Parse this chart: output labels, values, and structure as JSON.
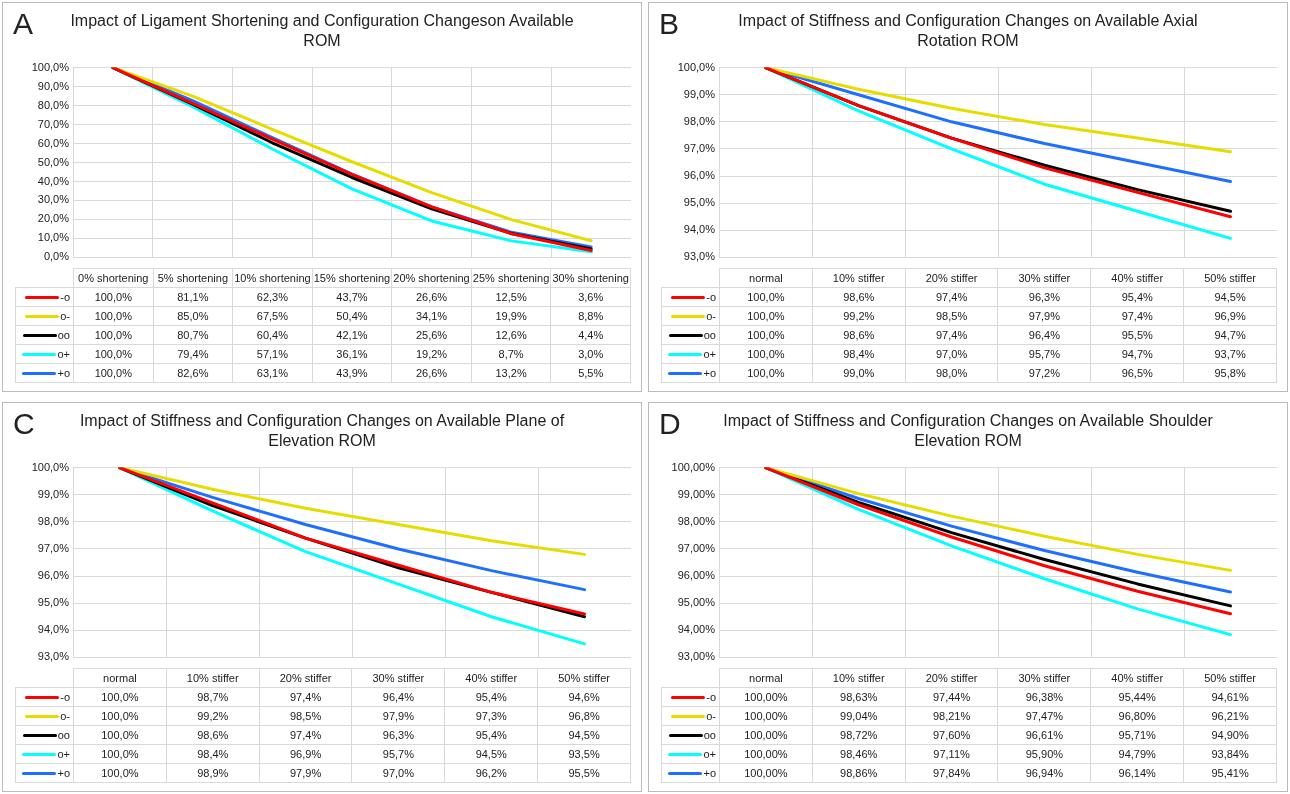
{
  "chart_data": [
    {
      "type": "line",
      "title": "Impact of Ligament Shortening and Configuration Changeson Available ROM",
      "annotations": [
        "A"
      ],
      "categories": [
        "0% shortening",
        "5% shortening",
        "10% shortening",
        "15% shortening",
        "20% shortening",
        "25% shortening",
        "30% shortening"
      ],
      "ylim": [
        0,
        100
      ],
      "yticks": [
        {
          "value": 0,
          "label": "0,0%"
        },
        {
          "value": 10,
          "label": "10,0%"
        },
        {
          "value": 20,
          "label": "20,0%"
        },
        {
          "value": 30,
          "label": "30,0%"
        },
        {
          "value": 40,
          "label": "40,0%"
        },
        {
          "value": 50,
          "label": "50,0%"
        },
        {
          "value": 60,
          "label": "60,0%"
        },
        {
          "value": 70,
          "label": "70,0%"
        },
        {
          "value": 80,
          "label": "80,0%"
        },
        {
          "value": 90,
          "label": "90,0%"
        },
        {
          "value": 100,
          "label": "100,0%"
        }
      ],
      "grid": true,
      "legend": "bottom",
      "series": [
        {
          "name": "-o",
          "color": "#ff0000",
          "values": [
            100,
            81.1,
            62.3,
            43.7,
            26.6,
            12.5,
            3.6
          ],
          "value_labels": [
            "100,0%",
            "81,1%",
            "62,3%",
            "43,7%",
            "26,6%",
            "12,5%",
            "3,6%"
          ]
        },
        {
          "name": "o-",
          "color": "#e6dc00",
          "values": [
            100,
            85.0,
            67.5,
            50.4,
            34.1,
            19.9,
            8.8
          ],
          "value_labels": [
            "100,0%",
            "85,0%",
            "67,5%",
            "50,4%",
            "34,1%",
            "19,9%",
            "8,8%"
          ]
        },
        {
          "name": "oo",
          "color": "#000000",
          "values": [
            100,
            80.7,
            60.4,
            42.1,
            25.6,
            12.6,
            4.4
          ],
          "value_labels": [
            "100,0%",
            "80,7%",
            "60,4%",
            "42,1%",
            "25,6%",
            "12,6%",
            "4,4%"
          ]
        },
        {
          "name": "o+",
          "color": "#00ffff",
          "values": [
            100,
            79.4,
            57.1,
            36.1,
            19.2,
            8.7,
            3.0
          ],
          "value_labels": [
            "100,0%",
            "79,4%",
            "57,1%",
            "36,1%",
            "19,2%",
            "8,7%",
            "3,0%"
          ]
        },
        {
          "name": "+o",
          "color": "#1e6fff",
          "values": [
            100,
            82.6,
            63.1,
            43.9,
            26.6,
            13.2,
            5.5
          ],
          "value_labels": [
            "100,0%",
            "82,6%",
            "63,1%",
            "43,9%",
            "26,6%",
            "13,2%",
            "5,5%"
          ]
        }
      ]
    },
    {
      "type": "line",
      "title": "Impact of Stiffness and Configuration Changes on Available Axial Rotation ROM",
      "annotations": [
        "B"
      ],
      "categories": [
        "normal",
        "10% stiffer",
        "20% stiffer",
        "30% stiffer",
        "40% stiffer",
        "50% stiffer"
      ],
      "ylim": [
        93,
        100
      ],
      "yticks": [
        {
          "value": 93,
          "label": "93,0%"
        },
        {
          "value": 94,
          "label": "94,0%"
        },
        {
          "value": 95,
          "label": "95,0%"
        },
        {
          "value": 96,
          "label": "96,0%"
        },
        {
          "value": 97,
          "label": "97,0%"
        },
        {
          "value": 98,
          "label": "98,0%"
        },
        {
          "value": 99,
          "label": "99,0%"
        },
        {
          "value": 100,
          "label": "100,0%"
        }
      ],
      "grid": true,
      "legend": "bottom",
      "series": [
        {
          "name": "-o",
          "color": "#ff0000",
          "values": [
            100,
            98.6,
            97.4,
            96.3,
            95.4,
            94.5
          ],
          "value_labels": [
            "100,0%",
            "98,6%",
            "97,4%",
            "96,3%",
            "95,4%",
            "94,5%"
          ]
        },
        {
          "name": "o-",
          "color": "#e6dc00",
          "values": [
            100,
            99.2,
            98.5,
            97.9,
            97.4,
            96.9
          ],
          "value_labels": [
            "100,0%",
            "99,2%",
            "98,5%",
            "97,9%",
            "97,4%",
            "96,9%"
          ]
        },
        {
          "name": "oo",
          "color": "#000000",
          "values": [
            100,
            98.6,
            97.4,
            96.4,
            95.5,
            94.7
          ],
          "value_labels": [
            "100,0%",
            "98,6%",
            "97,4%",
            "96,4%",
            "95,5%",
            "94,7%"
          ]
        },
        {
          "name": "o+",
          "color": "#00ffff",
          "values": [
            100,
            98.4,
            97.0,
            95.7,
            94.7,
            93.7
          ],
          "value_labels": [
            "100,0%",
            "98,4%",
            "97,0%",
            "95,7%",
            "94,7%",
            "93,7%"
          ]
        },
        {
          "name": "+o",
          "color": "#1e6fff",
          "values": [
            100,
            99.0,
            98.0,
            97.2,
            96.5,
            95.8
          ],
          "value_labels": [
            "100,0%",
            "99,0%",
            "98,0%",
            "97,2%",
            "96,5%",
            "95,8%"
          ]
        }
      ]
    },
    {
      "type": "line",
      "title": "Impact of Stiffness and Configuration Changes on Available Plane of Elevation ROM",
      "annotations": [
        "C"
      ],
      "categories": [
        "normal",
        "10% stiffer",
        "20% stiffer",
        "30% stiffer",
        "40% stiffer",
        "50% stiffer"
      ],
      "ylim": [
        93,
        100
      ],
      "yticks": [
        {
          "value": 93,
          "label": "93,0%"
        },
        {
          "value": 94,
          "label": "94,0%"
        },
        {
          "value": 95,
          "label": "95,0%"
        },
        {
          "value": 96,
          "label": "96,0%"
        },
        {
          "value": 97,
          "label": "97,0%"
        },
        {
          "value": 98,
          "label": "98,0%"
        },
        {
          "value": 99,
          "label": "99,0%"
        },
        {
          "value": 100,
          "label": "100,0%"
        }
      ],
      "grid": true,
      "legend": "bottom",
      "series": [
        {
          "name": "-o",
          "color": "#ff0000",
          "values": [
            100,
            98.7,
            97.4,
            96.4,
            95.4,
            94.6
          ],
          "value_labels": [
            "100,0%",
            "98,7%",
            "97,4%",
            "96,4%",
            "95,4%",
            "94,6%"
          ]
        },
        {
          "name": "o-",
          "color": "#e6dc00",
          "values": [
            100,
            99.2,
            98.5,
            97.9,
            97.3,
            96.8
          ],
          "value_labels": [
            "100,0%",
            "99,2%",
            "98,5%",
            "97,9%",
            "97,3%",
            "96,8%"
          ]
        },
        {
          "name": "oo",
          "color": "#000000",
          "values": [
            100,
            98.6,
            97.4,
            96.3,
            95.4,
            94.5
          ],
          "value_labels": [
            "100,0%",
            "98,6%",
            "97,4%",
            "96,3%",
            "95,4%",
            "94,5%"
          ]
        },
        {
          "name": "o+",
          "color": "#00ffff",
          "values": [
            100,
            98.4,
            96.9,
            95.7,
            94.5,
            93.5
          ],
          "value_labels": [
            "100,0%",
            "98,4%",
            "96,9%",
            "95,7%",
            "94,5%",
            "93,5%"
          ]
        },
        {
          "name": "+o",
          "color": "#1e6fff",
          "values": [
            100,
            98.9,
            97.9,
            97.0,
            96.2,
            95.5
          ],
          "value_labels": [
            "100,0%",
            "98,9%",
            "97,9%",
            "97,0%",
            "96,2%",
            "95,5%"
          ]
        }
      ]
    },
    {
      "type": "line",
      "title": "Impact of Stiffness and Configuration Changes on Available Shoulder Elevation ROM",
      "annotations": [
        "D"
      ],
      "categories": [
        "normal",
        "10% stiffer",
        "20% stiffer",
        "30% stiffer",
        "40% stiffer",
        "50% stiffer"
      ],
      "ylim": [
        93,
        100
      ],
      "yticks": [
        {
          "value": 93,
          "label": "93,00%"
        },
        {
          "value": 94,
          "label": "94,00%"
        },
        {
          "value": 95,
          "label": "95,00%"
        },
        {
          "value": 96,
          "label": "96,00%"
        },
        {
          "value": 97,
          "label": "97,00%"
        },
        {
          "value": 98,
          "label": "98,00%"
        },
        {
          "value": 99,
          "label": "99,00%"
        },
        {
          "value": 100,
          "label": "100,00%"
        }
      ],
      "grid": true,
      "legend": "bottom",
      "series": [
        {
          "name": "-o",
          "color": "#ff0000",
          "values": [
            100,
            98.63,
            97.44,
            96.38,
            95.44,
            94.61
          ],
          "value_labels": [
            "100,00%",
            "98,63%",
            "97,44%",
            "96,38%",
            "95,44%",
            "94,61%"
          ]
        },
        {
          "name": "o-",
          "color": "#e6dc00",
          "values": [
            100,
            99.04,
            98.21,
            97.47,
            96.8,
            96.21
          ],
          "value_labels": [
            "100,00%",
            "99,04%",
            "98,21%",
            "97,47%",
            "96,80%",
            "96,21%"
          ]
        },
        {
          "name": "oo",
          "color": "#000000",
          "values": [
            100,
            98.72,
            97.6,
            96.61,
            95.71,
            94.9
          ],
          "value_labels": [
            "100,00%",
            "98,72%",
            "97,60%",
            "96,61%",
            "95,71%",
            "94,90%"
          ]
        },
        {
          "name": "o+",
          "color": "#00ffff",
          "values": [
            100,
            98.46,
            97.11,
            95.9,
            94.79,
            93.84
          ],
          "value_labels": [
            "100,00%",
            "98,46%",
            "97,11%",
            "95,90%",
            "94,79%",
            "93,84%"
          ]
        },
        {
          "name": "+o",
          "color": "#1e6fff",
          "values": [
            100,
            98.86,
            97.84,
            96.94,
            96.14,
            95.41
          ],
          "value_labels": [
            "100,00%",
            "98,86%",
            "97,84%",
            "96,94%",
            "96,14%",
            "95,41%"
          ]
        }
      ]
    }
  ]
}
